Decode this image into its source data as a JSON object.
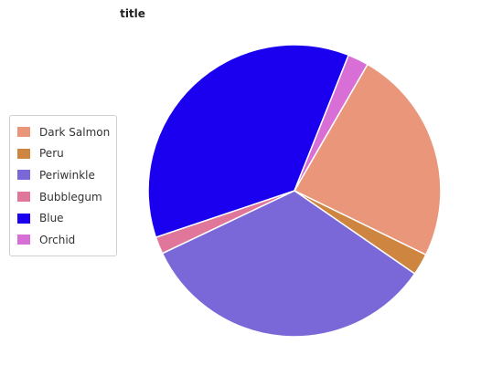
{
  "chart_data": {
    "type": "pie",
    "title": "title",
    "legend_position": "left",
    "slices": [
      {
        "label": "Dark Salmon",
        "value": 23.9,
        "color": "#E9967A"
      },
      {
        "label": "Peru",
        "value": 2.4,
        "color": "#CD853F"
      },
      {
        "label": "Periwinkle",
        "value": 33.3,
        "color": "#7B68D8"
      },
      {
        "label": "Bubblegum",
        "value": 1.9,
        "color": "#E0779B"
      },
      {
        "label": "Blue",
        "value": 36.2,
        "color": "#1A00EE"
      },
      {
        "label": "Orchid",
        "value": 2.3,
        "color": "#D86FD6"
      }
    ]
  }
}
